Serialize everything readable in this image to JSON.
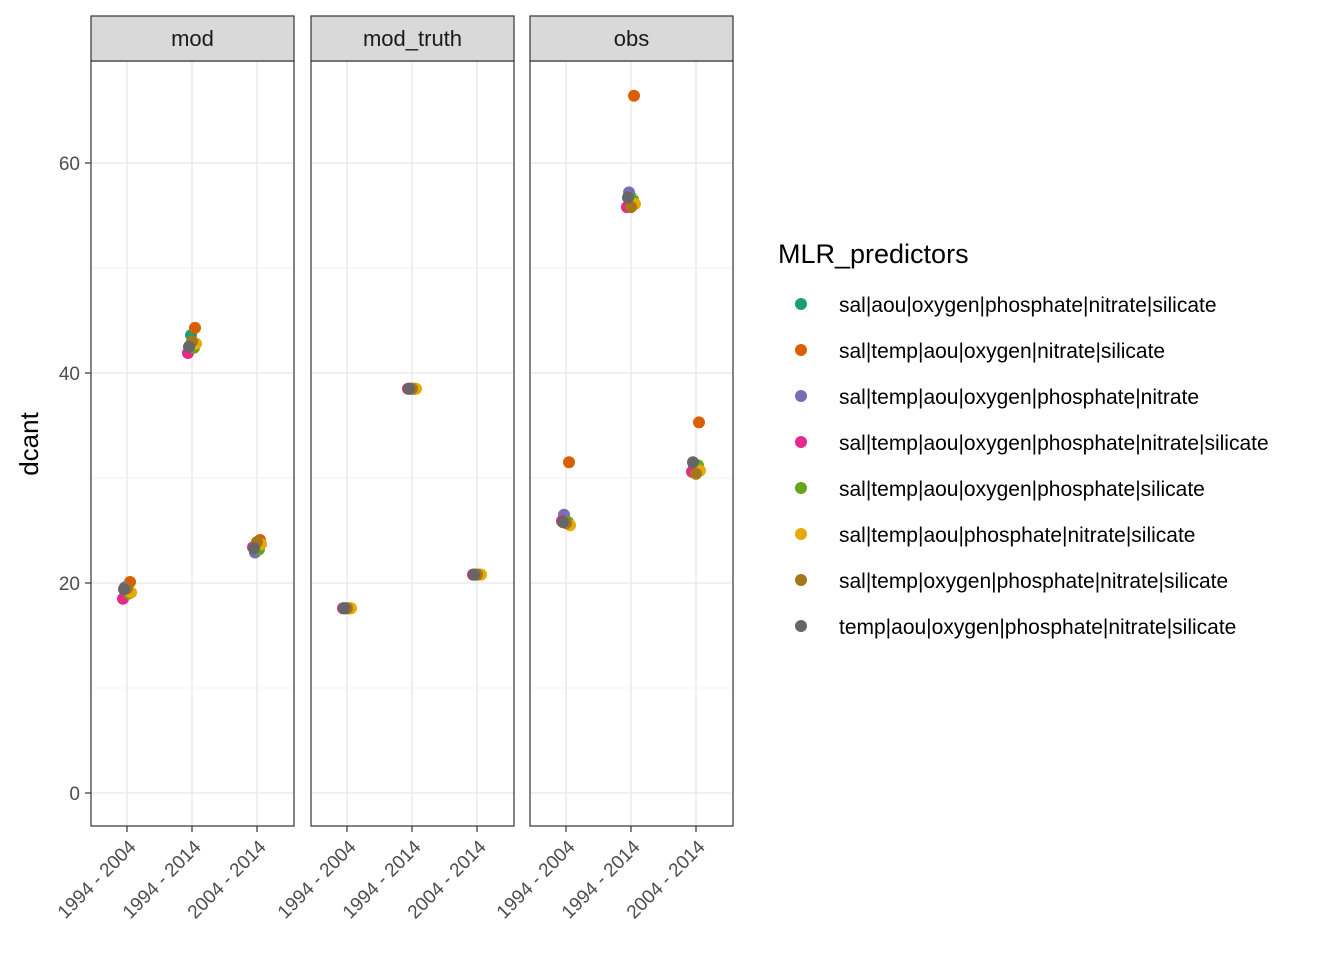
{
  "chart_data": {
    "type": "scatter",
    "ylabel": "dcant",
    "xlabel": "",
    "ylim": [
      -3,
      70
    ],
    "y_ticks": [
      0,
      20,
      40,
      60
    ],
    "categories": [
      "1994 - 2004",
      "1994 - 2014",
      "2004 - 2014"
    ],
    "facets": [
      "mod",
      "mod_truth",
      "obs"
    ],
    "grid": true,
    "legend": {
      "title": "MLR_predictors",
      "placement": "right",
      "entries": [
        {
          "name": "sal|aou|oxygen|phosphate|nitrate|silicate",
          "color": "#1b9e77"
        },
        {
          "name": "sal|temp|aou|oxygen|nitrate|silicate",
          "color": "#d95f02"
        },
        {
          "name": "sal|temp|aou|oxygen|phosphate|nitrate",
          "color": "#7570b3"
        },
        {
          "name": "sal|temp|aou|oxygen|phosphate|nitrate|silicate",
          "color": "#e7298a"
        },
        {
          "name": "sal|temp|aou|oxygen|phosphate|silicate",
          "color": "#66a61e"
        },
        {
          "name": "sal|temp|aou|phosphate|nitrate|silicate",
          "color": "#e6ab02"
        },
        {
          "name": "sal|temp|oxygen|phosphate|nitrate|silicate",
          "color": "#a6761d"
        },
        {
          "name": "temp|aou|oxygen|phosphate|nitrate|silicate",
          "color": "#666666"
        }
      ]
    },
    "series": [
      {
        "name": "sal|aou|oxygen|phosphate|nitrate|silicate",
        "color": "#1b9e77",
        "values": {
          "mod": [
            19.2,
            43.6,
            23.5
          ],
          "mod_truth": [
            17.6,
            38.5,
            20.8
          ],
          "obs": [
            25.9,
            56.9,
            31.1
          ]
        }
      },
      {
        "name": "sal|temp|aou|oxygen|nitrate|silicate",
        "color": "#d95f02",
        "values": {
          "mod": [
            20.1,
            44.3,
            24.1
          ],
          "mod_truth": [
            17.6,
            38.5,
            20.8
          ],
          "obs": [
            31.5,
            66.4,
            35.3
          ]
        }
      },
      {
        "name": "sal|temp|aou|oxygen|phosphate|nitrate",
        "color": "#7570b3",
        "values": {
          "mod": [
            19.6,
            42.6,
            22.9
          ],
          "mod_truth": [
            17.6,
            38.5,
            20.8
          ],
          "obs": [
            26.5,
            57.2,
            31.0
          ]
        }
      },
      {
        "name": "sal|temp|aou|oxygen|phosphate|nitrate|silicate",
        "color": "#e7298a",
        "values": {
          "mod": [
            18.5,
            41.9,
            23.4
          ],
          "mod_truth": [
            17.6,
            38.5,
            20.8
          ],
          "obs": [
            25.9,
            55.8,
            30.6
          ]
        }
      },
      {
        "name": "sal|temp|aou|oxygen|phosphate|silicate",
        "color": "#66a61e",
        "values": {
          "mod": [
            19.0,
            42.4,
            23.2
          ],
          "mod_truth": [
            17.6,
            38.5,
            20.8
          ],
          "obs": [
            25.8,
            56.5,
            31.2
          ]
        }
      },
      {
        "name": "sal|temp|aou|phosphate|nitrate|silicate",
        "color": "#e6ab02",
        "values": {
          "mod": [
            19.1,
            42.8,
            23.7
          ],
          "mod_truth": [
            17.6,
            38.5,
            20.8
          ],
          "obs": [
            25.5,
            56.1,
            30.7
          ]
        }
      },
      {
        "name": "sal|temp|oxygen|phosphate|nitrate|silicate",
        "color": "#a6761d",
        "values": {
          "mod": [
            19.5,
            43.0,
            23.9
          ],
          "mod_truth": [
            17.6,
            38.5,
            20.8
          ],
          "obs": [
            25.7,
            55.8,
            30.4
          ]
        }
      },
      {
        "name": "temp|aou|oxygen|phosphate|nitrate|silicate",
        "color": "#666666",
        "values": {
          "mod": [
            19.4,
            42.5,
            23.3
          ],
          "mod_truth": [
            17.6,
            38.5,
            20.8
          ],
          "obs": [
            25.8,
            56.7,
            31.5
          ]
        }
      }
    ]
  }
}
